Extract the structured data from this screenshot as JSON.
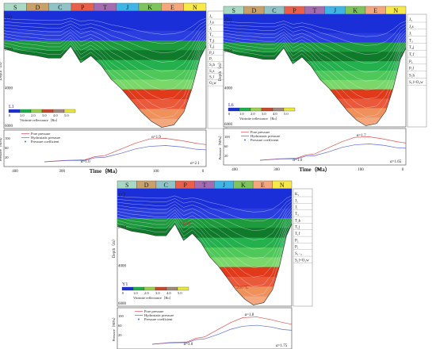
{
  "periods": [
    {
      "label": "S",
      "color": "#a9d8c4"
    },
    {
      "label": "D",
      "color": "#c8a06a"
    },
    {
      "label": "C",
      "color": "#8fc3c6"
    },
    {
      "label": "P",
      "color": "#e8604a"
    },
    {
      "label": "T",
      "color": "#a46bb0"
    },
    {
      "label": "J",
      "color": "#40b4e4"
    },
    {
      "label": "K",
      "color": "#7fc35c"
    },
    {
      "label": "E",
      "color": "#f4a77c"
    },
    {
      "label": "N",
      "color": "#f7e94a"
    }
  ],
  "common": {
    "depth_label": "Depth（m）",
    "pressure_label": "Pressure（MPa）",
    "time_label": "Time（Ma）",
    "vr_label": "Vitrinite reflectance（Ro）",
    "legend_ticks": [
      "0",
      "1.0",
      "2.0",
      "3.0",
      "4.0",
      "5.0"
    ],
    "legend_colors": [
      "#1b2fd8",
      "#1db04a",
      "#9bd24c",
      "#c84a2a",
      "#a08a7a",
      "#e8e83a"
    ],
    "pressure_legend": [
      "Pore pressure",
      "Hydrostatic pressure",
      "Pressure coefficient"
    ],
    "series_colors": {
      "pore": "#e05050",
      "hydro": "#5a6ad8",
      "coef": "#4a70c8"
    }
  },
  "panels": [
    {
      "tag": "(a)",
      "well": "L1",
      "depth_ticks": [
        "2000",
        "4000",
        "6000"
      ],
      "time_ticks": [
        "400",
        "300",
        "200",
        "100",
        "0"
      ],
      "pressure_ticks": [
        "100",
        "60",
        "20"
      ],
      "alpha_peak": "α=1.9",
      "alpha_start": "α=1.0",
      "alpha_end": "α=2.1",
      "formations": [
        "J₃",
        "J₂s",
        "J₁",
        "T₃",
        "T₂j",
        "T₁j",
        "P₂l",
        "P₁",
        "S₂h",
        "S₁s",
        "S₁l",
        "O₃w"
      ],
      "temps": []
    },
    {
      "tag": "(b)",
      "well": "L6",
      "depth_ticks": [
        "2000",
        "4000",
        "6000"
      ],
      "time_ticks": [
        "400",
        "300",
        "200",
        "100",
        "0"
      ],
      "pressure_ticks": [
        "100",
        "60",
        "20"
      ],
      "alpha_peak": "α=1.7",
      "alpha_start": "α=1.0",
      "alpha_end": "α=1.65",
      "formations": [
        "J₃",
        "J₂s",
        "J₁",
        "T₃",
        "T₂j",
        "T₁f",
        "P₂",
        "P₂l",
        "S₂h",
        "S₁l+O₃w"
      ],
      "temps": []
    },
    {
      "tag": "(c)",
      "well": "Y1",
      "depth_ticks": [
        "2000",
        "4000",
        "6000"
      ],
      "time_ticks": [
        "400",
        "300",
        "200",
        "100",
        "0"
      ],
      "pressure_ticks": [
        "100",
        "60",
        "20"
      ],
      "alpha_peak": "α=1.8",
      "alpha_start": "α=1.0",
      "alpha_end": "α=1.75",
      "formations": [
        "K₁",
        "J₂",
        "J₁",
        "T₃",
        "T₂k",
        "T₁j",
        "T₁f",
        "P₂",
        "P₁",
        "S₁₋₂",
        "S₁l+O₃w"
      ],
      "temps": [
        "100℃",
        "200℃"
      ]
    }
  ]
}
